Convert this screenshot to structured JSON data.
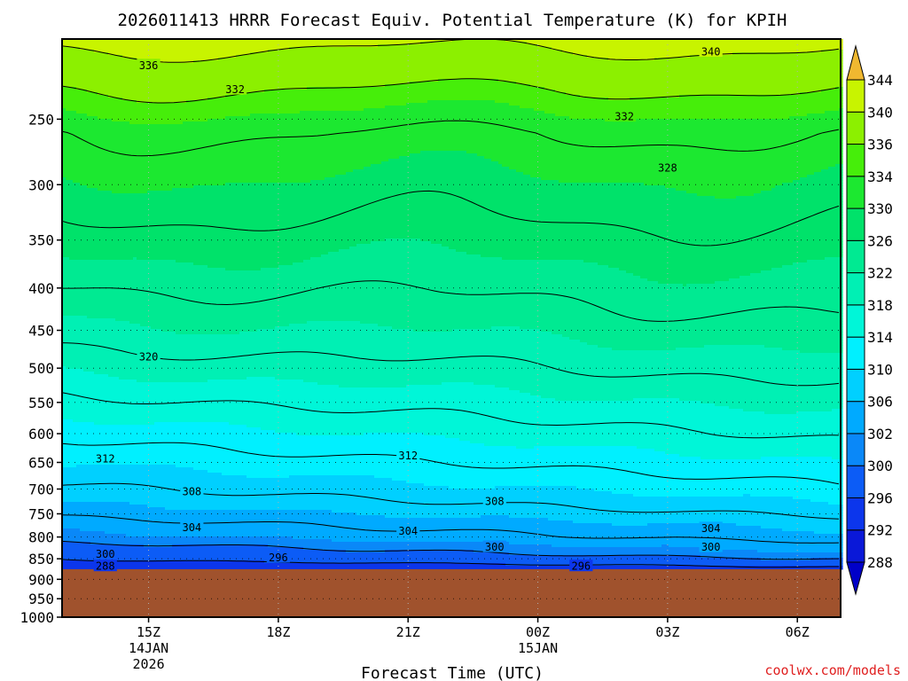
{
  "chart_data": {
    "type": "contour",
    "title": "2026011413 HRRR Forecast Equiv. Potential Temperature (K) for KPIH",
    "xlabel": "Forecast Time (UTC)",
    "ylabel": "",
    "credit": "coolwx.com/models",
    "y_scale": "log",
    "ylim_hpa": [
      1000,
      200
    ],
    "y_ticks": [
      "250",
      "300",
      "350",
      "400",
      "450",
      "500",
      "550",
      "600",
      "650",
      "700",
      "750",
      "800",
      "850",
      "900",
      "950",
      "1000"
    ],
    "x_ticks": [
      {
        "label": "15Z",
        "line2": "14JAN",
        "line3": "2026"
      },
      {
        "label": "18Z",
        "line2": "",
        "line3": ""
      },
      {
        "label": "21Z",
        "line2": "",
        "line3": ""
      },
      {
        "label": "00Z",
        "line2": "15JAN",
        "line3": ""
      },
      {
        "label": "03Z",
        "line2": "",
        "line3": ""
      },
      {
        "label": "06Z",
        "line2": "",
        "line3": ""
      }
    ],
    "xlim_hours_after_13Z": [
      0,
      18
    ],
    "x_tick_hours": [
      2,
      5,
      8,
      11,
      14,
      17
    ],
    "grid": "dotted",
    "surface_pressure_hpa": 875,
    "contour_interval_k": 4,
    "colorbar": {
      "levels": [
        288,
        292,
        296,
        300,
        302,
        306,
        310,
        314,
        318,
        322,
        326,
        330,
        334,
        336,
        340,
        344
      ],
      "tick_labels": [
        "288",
        "292",
        "296",
        "300",
        "302",
        "306",
        "310",
        "314",
        "318",
        "322",
        "326",
        "330",
        "334",
        "336",
        "340",
        "344"
      ],
      "colors": [
        "#0a18d8",
        "#0c36ec",
        "#0c5cf6",
        "#0a88f8",
        "#00aaff",
        "#00d0ff",
        "#00f0ff",
        "#00f6d8",
        "#00f0b4",
        "#00ea92",
        "#00e26a",
        "#1ce830",
        "#46ee0a",
        "#8cf000",
        "#c8f400",
        "#ffff00"
      ],
      "under_color": "#0000c8",
      "over_color": "#f0b830"
    },
    "ground_color": "#a0522d",
    "vertical_profile": {
      "pressure_hpa": [
        200,
        230,
        260,
        300,
        350,
        400,
        450,
        500,
        550,
        600,
        650,
        700,
        740,
        770,
        800,
        820,
        840,
        855,
        870
      ],
      "theta_e_k": [
        341,
        336,
        332,
        329.5,
        327,
        324.5,
        322.2,
        319.6,
        317,
        314.5,
        312,
        309.5,
        307.2,
        305,
        303.2,
        301.2,
        299.5,
        297.5,
        294
      ]
    },
    "contour_labels": [
      {
        "text": "336",
        "hour": 2.0,
        "p": 215
      },
      {
        "text": "340",
        "hour": 15.0,
        "p": 207
      },
      {
        "text": "332",
        "hour": 4.0,
        "p": 230
      },
      {
        "text": "332",
        "hour": 13.0,
        "p": 248
      },
      {
        "text": "328",
        "hour": 14.0,
        "p": 286
      },
      {
        "text": "320",
        "hour": 2.0,
        "p": 484
      },
      {
        "text": "312",
        "hour": 1.0,
        "p": 643
      },
      {
        "text": "312",
        "hour": 8.0,
        "p": 637
      },
      {
        "text": "308",
        "hour": 3.0,
        "p": 704
      },
      {
        "text": "308",
        "hour": 10.0,
        "p": 724
      },
      {
        "text": "304",
        "hour": 3.0,
        "p": 778
      },
      {
        "text": "304",
        "hour": 8.0,
        "p": 786
      },
      {
        "text": "304",
        "hour": 15.0,
        "p": 780
      },
      {
        "text": "300",
        "hour": 1.0,
        "p": 838
      },
      {
        "text": "300",
        "hour": 10.0,
        "p": 822
      },
      {
        "text": "300",
        "hour": 15.0,
        "p": 822
      },
      {
        "text": "296",
        "hour": 5.0,
        "p": 846
      },
      {
        "text": "296",
        "hour": 12.0,
        "p": 867
      },
      {
        "text": "288",
        "hour": 1.0,
        "p": 867
      }
    ]
  }
}
